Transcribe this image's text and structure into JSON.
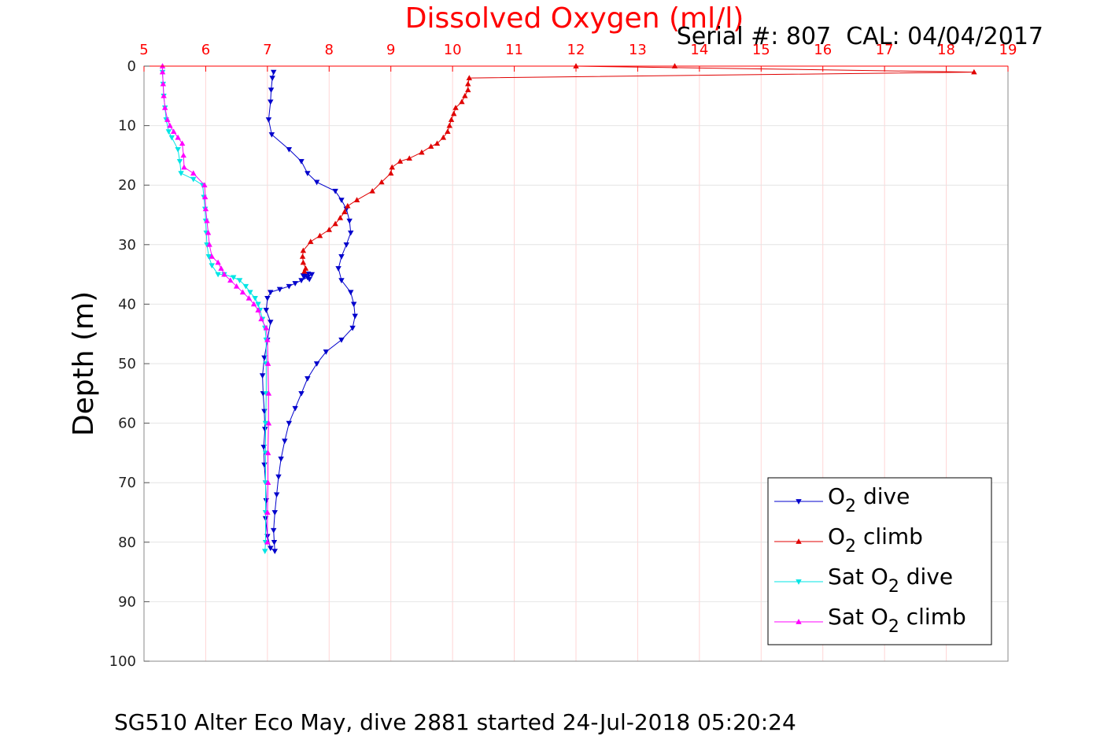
{
  "chart_data": {
    "type": "line",
    "title": "Dissolved Oxygen (ml/l)",
    "subtitle": "Serial #: 807  CAL: 04/04/2017",
    "xlabel": "",
    "ylabel": "Depth (m)",
    "caption": "SG510 Alter Eco May, dive 2881 started 24-Jul-2018 05:20:24",
    "xlim": [
      5,
      19
    ],
    "ylim": [
      0,
      100
    ],
    "y_reversed": true,
    "x_axis_position": "top",
    "xticks": [
      5,
      6,
      7,
      8,
      9,
      10,
      11,
      12,
      13,
      14,
      15,
      16,
      17,
      18,
      19
    ],
    "yticks": [
      0,
      10,
      20,
      30,
      40,
      50,
      60,
      70,
      80,
      90,
      100
    ],
    "grid": true,
    "legend_position": "bottom-right",
    "colors": {
      "title": "#ff0000",
      "x_ticks": "#ff0000",
      "grid": "#ffd6d6"
    },
    "series": [
      {
        "key": "o2_dive",
        "legend_main": "O",
        "legend_sub": "2",
        "legend_tail": " dive",
        "color": "#0000cc",
        "marker": "down-triangle",
        "points": [
          [
            7.1,
            1
          ],
          [
            7.08,
            2
          ],
          [
            7.06,
            4
          ],
          [
            7.05,
            6
          ],
          [
            7.02,
            9
          ],
          [
            7.07,
            11.5
          ],
          [
            7.35,
            14
          ],
          [
            7.55,
            16
          ],
          [
            7.65,
            18
          ],
          [
            7.8,
            19.5
          ],
          [
            8.1,
            21
          ],
          [
            8.2,
            22.5
          ],
          [
            8.28,
            24
          ],
          [
            8.33,
            26
          ],
          [
            8.35,
            28
          ],
          [
            8.28,
            30
          ],
          [
            8.2,
            32
          ],
          [
            8.15,
            34
          ],
          [
            8.2,
            36
          ],
          [
            8.35,
            38
          ],
          [
            8.4,
            40
          ],
          [
            8.42,
            42
          ],
          [
            8.38,
            44
          ],
          [
            8.2,
            46
          ],
          [
            7.95,
            48
          ],
          [
            7.8,
            50
          ],
          [
            7.65,
            52.5
          ],
          [
            7.55,
            55
          ],
          [
            7.45,
            57.5
          ],
          [
            7.35,
            60
          ],
          [
            7.28,
            63
          ],
          [
            7.22,
            66
          ],
          [
            7.18,
            69
          ],
          [
            7.15,
            72
          ],
          [
            7.12,
            75
          ],
          [
            7.1,
            78
          ],
          [
            7.11,
            80
          ],
          [
            7.12,
            81.5
          ],
          [
            7.05,
            81
          ],
          [
            7.0,
            79
          ],
          [
            6.97,
            76
          ],
          [
            6.98,
            73
          ],
          [
            6.97,
            70
          ],
          [
            6.95,
            67
          ],
          [
            6.94,
            64
          ],
          [
            6.96,
            61
          ],
          [
            6.95,
            58
          ],
          [
            6.93,
            55
          ],
          [
            6.92,
            52
          ],
          [
            6.95,
            49
          ],
          [
            7.0,
            46
          ],
          [
            7.05,
            43
          ],
          [
            6.98,
            41
          ],
          [
            7.0,
            39
          ],
          [
            7.05,
            38
          ],
          [
            7.2,
            37.5
          ],
          [
            7.35,
            37
          ],
          [
            7.45,
            36.5
          ],
          [
            7.55,
            36
          ],
          [
            7.65,
            35.5
          ],
          [
            7.72,
            35
          ],
          [
            7.6,
            35.3
          ],
          [
            7.68,
            35.8
          ],
          [
            7.58,
            35.2
          ],
          [
            7.66,
            34.9
          ]
        ]
      },
      {
        "key": "o2_climb",
        "legend_main": "O",
        "legend_sub": "2",
        "legend_tail": " climb",
        "color": "#e00000",
        "marker": "up-triangle",
        "points": [
          [
            7.6,
            34.5
          ],
          [
            7.62,
            34
          ],
          [
            7.58,
            33
          ],
          [
            7.57,
            32
          ],
          [
            7.58,
            31
          ],
          [
            7.7,
            29.5
          ],
          [
            7.85,
            28.5
          ],
          [
            8.0,
            27.5
          ],
          [
            8.1,
            26.5
          ],
          [
            8.18,
            25.5
          ],
          [
            8.25,
            24.5
          ],
          [
            8.3,
            23.5
          ],
          [
            8.45,
            22.5
          ],
          [
            8.7,
            21
          ],
          [
            8.85,
            19.5
          ],
          [
            9.0,
            18
          ],
          [
            9.02,
            17
          ],
          [
            9.15,
            16
          ],
          [
            9.3,
            15.5
          ],
          [
            9.5,
            14.5
          ],
          [
            9.65,
            13.5
          ],
          [
            9.75,
            13
          ],
          [
            9.85,
            12
          ],
          [
            9.92,
            11
          ],
          [
            9.95,
            10
          ],
          [
            9.98,
            9
          ],
          [
            10.02,
            8
          ],
          [
            10.05,
            7
          ],
          [
            10.15,
            6
          ],
          [
            10.2,
            5
          ],
          [
            10.25,
            4
          ],
          [
            10.25,
            3
          ],
          [
            10.27,
            2
          ],
          [
            18.45,
            1
          ],
          [
            12.0,
            0
          ],
          [
            13.6,
            0
          ]
        ]
      },
      {
        "key": "sat_o2_dive",
        "legend_main": "Sat O",
        "legend_sub": "2",
        "legend_tail": " dive",
        "color": "#00e5e5",
        "marker": "down-triangle",
        "points": [
          [
            5.3,
            1
          ],
          [
            5.31,
            3
          ],
          [
            5.32,
            5
          ],
          [
            5.34,
            7
          ],
          [
            5.36,
            9
          ],
          [
            5.4,
            11
          ],
          [
            5.45,
            12
          ],
          [
            5.55,
            14
          ],
          [
            5.58,
            16
          ],
          [
            5.6,
            18
          ],
          [
            5.8,
            19
          ],
          [
            5.95,
            20
          ],
          [
            5.97,
            22
          ],
          [
            5.99,
            24
          ],
          [
            6.0,
            26
          ],
          [
            6.01,
            28
          ],
          [
            6.02,
            30
          ],
          [
            6.05,
            32
          ],
          [
            6.1,
            33.5
          ],
          [
            6.2,
            35
          ],
          [
            6.3,
            35
          ],
          [
            6.45,
            35.5
          ],
          [
            6.55,
            36
          ],
          [
            6.65,
            37
          ],
          [
            6.72,
            38
          ],
          [
            6.8,
            39
          ],
          [
            6.85,
            40
          ],
          [
            6.88,
            41
          ],
          [
            6.92,
            42.5
          ],
          [
            6.96,
            44
          ],
          [
            6.98,
            46
          ],
          [
            6.98,
            50
          ],
          [
            6.98,
            55
          ],
          [
            6.97,
            60
          ],
          [
            6.97,
            65
          ],
          [
            6.97,
            70
          ],
          [
            6.97,
            75
          ],
          [
            6.97,
            80
          ],
          [
            6.96,
            81.5
          ]
        ]
      },
      {
        "key": "sat_o2_climb",
        "legend_main": "Sat O",
        "legend_sub": "2",
        "legend_tail": " climb",
        "color": "#ff00ff",
        "marker": "up-triangle",
        "points": [
          [
            7.0,
            80
          ],
          [
            7.0,
            75
          ],
          [
            7.01,
            70
          ],
          [
            7.01,
            65
          ],
          [
            7.02,
            60
          ],
          [
            7.02,
            55
          ],
          [
            7.01,
            50
          ],
          [
            7.0,
            46
          ],
          [
            6.98,
            44
          ],
          [
            6.9,
            42.5
          ],
          [
            6.85,
            41
          ],
          [
            6.78,
            40
          ],
          [
            6.7,
            39
          ],
          [
            6.6,
            38
          ],
          [
            6.5,
            37
          ],
          [
            6.4,
            36
          ],
          [
            6.3,
            35
          ],
          [
            6.25,
            34
          ],
          [
            6.2,
            33
          ],
          [
            6.1,
            32
          ],
          [
            6.06,
            30
          ],
          [
            6.04,
            28
          ],
          [
            6.02,
            26
          ],
          [
            6.0,
            24
          ],
          [
            5.99,
            22
          ],
          [
            5.98,
            20
          ],
          [
            5.8,
            18
          ],
          [
            5.65,
            17
          ],
          [
            5.64,
            15
          ],
          [
            5.62,
            13
          ],
          [
            5.55,
            12
          ],
          [
            5.48,
            11
          ],
          [
            5.42,
            10
          ],
          [
            5.38,
            9
          ],
          [
            5.34,
            7
          ],
          [
            5.32,
            5
          ],
          [
            5.31,
            3
          ],
          [
            5.3,
            1
          ],
          [
            5.3,
            0
          ]
        ]
      }
    ]
  }
}
